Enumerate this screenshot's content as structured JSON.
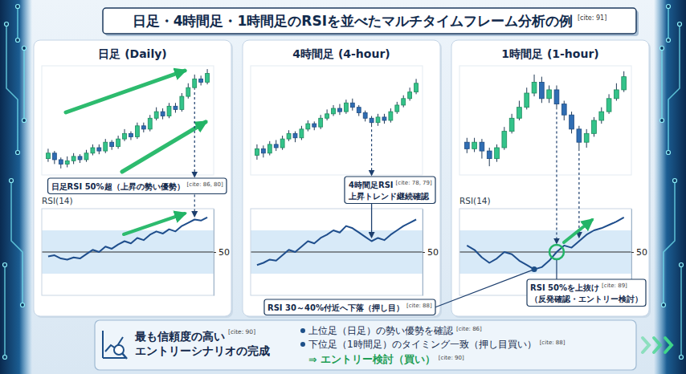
{
  "title": {
    "text": "日足・4時間足・1時間足のRSIを並べたマルチタイムフレーム分析の例",
    "cite": "[cite: 91]"
  },
  "chart_data": [
    {
      "type": "candlestick",
      "title": "日足 (Daily)",
      "tick_labels": false,
      "x": [
        1,
        2,
        3,
        4,
        5,
        6,
        7,
        8,
        9,
        10,
        11,
        12,
        13,
        14,
        15,
        16,
        17,
        18,
        19,
        20,
        21,
        22,
        23,
        24,
        25,
        26
      ],
      "xlim": [
        0,
        27
      ],
      "ylim": [
        0,
        100
      ],
      "open": [
        15,
        20,
        14,
        10,
        13,
        17,
        14,
        20,
        25,
        22,
        30,
        26,
        33,
        38,
        35,
        45,
        42,
        52,
        58,
        54,
        63,
        60,
        72,
        80,
        88,
        85
      ],
      "close": [
        20,
        14,
        10,
        13,
        17,
        14,
        20,
        25,
        22,
        30,
        26,
        33,
        38,
        35,
        45,
        42,
        52,
        58,
        54,
        63,
        60,
        72,
        80,
        88,
        85,
        93
      ],
      "high": [
        24,
        22,
        16,
        17,
        20,
        19,
        23,
        28,
        28,
        33,
        32,
        36,
        42,
        40,
        48,
        48,
        55,
        62,
        61,
        66,
        66,
        75,
        84,
        92,
        91,
        97
      ],
      "low": [
        12,
        10,
        6,
        7,
        10,
        11,
        12,
        18,
        19,
        20,
        23,
        24,
        31,
        32,
        33,
        39,
        40,
        50,
        51,
        52,
        57,
        58,
        70,
        78,
        82,
        83
      ]
    },
    {
      "type": "line",
      "title": "RSI(14)",
      "tick_labels": "y",
      "grid": true,
      "x": [
        1,
        2,
        3,
        4,
        5,
        6,
        7,
        8,
        9,
        10,
        11,
        12,
        13,
        14,
        15,
        16,
        17,
        18,
        19,
        20,
        21,
        22,
        23,
        24,
        25,
        26
      ],
      "xlim": [
        0,
        27
      ],
      "ylim": [
        10,
        90
      ],
      "yticks": [
        50
      ],
      "band": [
        30,
        70
      ],
      "values": [
        46,
        47,
        44,
        43,
        45,
        44,
        48,
        52,
        50,
        55,
        53,
        57,
        60,
        58,
        63,
        61,
        66,
        69,
        67,
        71,
        69,
        74,
        77,
        80,
        79,
        82
      ],
      "annotations": [
        {
          "lines": [
            "日足RSI 50%超（上昇の勢い優勢）"
          ],
          "cite": "[cite: 86, 80]"
        }
      ]
    },
    {
      "type": "candlestick",
      "title": "4時間足 (4-hour)",
      "tick_labels": false,
      "x": [
        1,
        2,
        3,
        4,
        5,
        6,
        7,
        8,
        9,
        10,
        11,
        12,
        13,
        14,
        15,
        16,
        17,
        18,
        19,
        20,
        21,
        22,
        23,
        24,
        25,
        26
      ],
      "xlim": [
        0,
        27
      ],
      "ylim": [
        0,
        100
      ],
      "open": [
        18,
        24,
        20,
        28,
        25,
        33,
        38,
        34,
        42,
        47,
        44,
        52,
        56,
        61,
        58,
        66,
        62,
        57,
        52,
        48,
        53,
        50,
        58,
        64,
        70,
        76
      ],
      "close": [
        24,
        20,
        28,
        25,
        33,
        38,
        34,
        42,
        47,
        44,
        52,
        56,
        61,
        58,
        66,
        62,
        57,
        52,
        48,
        53,
        50,
        58,
        64,
        70,
        76,
        84
      ],
      "high": [
        28,
        27,
        31,
        32,
        36,
        41,
        40,
        45,
        50,
        49,
        55,
        60,
        64,
        65,
        69,
        70,
        64,
        59,
        54,
        56,
        56,
        61,
        67,
        73,
        80,
        88
      ],
      "low": [
        14,
        16,
        18,
        22,
        23,
        31,
        30,
        32,
        40,
        41,
        42,
        50,
        54,
        55,
        56,
        59,
        54,
        49,
        44,
        45,
        47,
        48,
        56,
        62,
        68,
        74
      ]
    },
    {
      "type": "line",
      "tick_labels": "y",
      "grid": true,
      "x": [
        1,
        2,
        3,
        4,
        5,
        6,
        7,
        8,
        9,
        10,
        11,
        12,
        13,
        14,
        15,
        16,
        17,
        18,
        19,
        20,
        21,
        22,
        23,
        24,
        25,
        26
      ],
      "xlim": [
        0,
        27
      ],
      "ylim": [
        10,
        90
      ],
      "yticks": [
        50
      ],
      "band": [
        30,
        70
      ],
      "values": [
        38,
        40,
        43,
        42,
        47,
        52,
        50,
        55,
        60,
        58,
        63,
        66,
        70,
        68,
        74,
        72,
        68,
        64,
        60,
        63,
        61,
        66,
        70,
        74,
        77,
        80
      ],
      "annotations": [
        {
          "lines": [
            "4時間足RSI",
            "上昇トレンド継続確認"
          ],
          "cite": "[cite: 78, 79]"
        }
      ]
    },
    {
      "type": "candlestick",
      "title": "1時間足 (1-hour)",
      "tick_labels": false,
      "x": [
        1,
        2,
        3,
        4,
        5,
        6,
        7,
        8,
        9,
        10,
        11,
        12,
        13,
        14,
        15,
        16,
        17,
        18,
        19,
        20,
        21,
        22
      ],
      "xlim": [
        0,
        23
      ],
      "ylim": [
        0,
        100
      ],
      "open": [
        30,
        24,
        30,
        22,
        15,
        25,
        40,
        52,
        62,
        75,
        85,
        70,
        78,
        65,
        55,
        42,
        30,
        38,
        50,
        58,
        70,
        78
      ],
      "close": [
        24,
        30,
        22,
        15,
        25,
        40,
        52,
        62,
        75,
        85,
        70,
        78,
        65,
        55,
        42,
        30,
        38,
        50,
        58,
        70,
        78,
        90
      ],
      "high": [
        34,
        34,
        33,
        25,
        28,
        44,
        56,
        68,
        80,
        92,
        90,
        82,
        82,
        68,
        58,
        45,
        42,
        53,
        62,
        74,
        84,
        95
      ],
      "low": [
        20,
        21,
        15,
        8,
        12,
        23,
        38,
        50,
        60,
        72,
        66,
        66,
        60,
        50,
        38,
        22,
        25,
        35,
        47,
        56,
        68,
        76
      ]
    },
    {
      "type": "line",
      "title": "RSI(14)",
      "tick_labels": "y",
      "grid": true,
      "x": [
        1,
        2,
        3,
        4,
        5,
        6,
        7,
        8,
        9,
        10,
        11,
        12,
        13,
        14,
        15,
        16,
        17,
        18,
        19,
        20,
        21,
        22
      ],
      "xlim": [
        0,
        23
      ],
      "ylim": [
        10,
        90
      ],
      "yticks": [
        50
      ],
      "band": [
        30,
        70
      ],
      "values": [
        56,
        52,
        45,
        40,
        44,
        50,
        48,
        42,
        38,
        34,
        36,
        42,
        50,
        56,
        54,
        60,
        66,
        70,
        72,
        75,
        78,
        82
      ],
      "annotations": [
        {
          "lines": [
            "RSI 30～40%付近へ下落（押し目）"
          ],
          "cite": "[cite: 88]"
        },
        {
          "lines": [
            "RSI 50%を上抜け",
            "（反発確認・エントリー検討）"
          ],
          "cite": "[cite: 89]"
        }
      ]
    }
  ],
  "summary": {
    "heading": [
      "最も信頼度の高い",
      "エントリーシナリオの完成"
    ],
    "heading_cite": "[cite: 90]",
    "points": [
      {
        "text": "上位足（日足）の勢い優勢を確認",
        "cite": "[cite: 86]"
      },
      {
        "text": "下位足（1時間足）のタイミング一致（押し目買い）",
        "cite": "[cite: 88]"
      }
    ],
    "conclusion": {
      "text": "⇒ エントリー検討（買い）",
      "cite": "[cite: 90]"
    }
  }
}
